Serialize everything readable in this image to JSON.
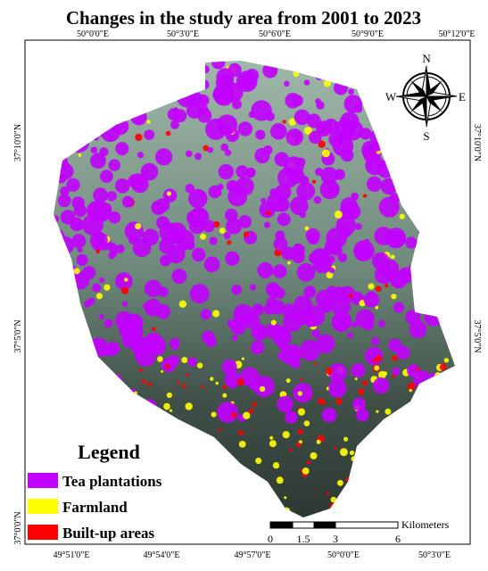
{
  "title": "Changes in the study area from 2001 to 2023",
  "grid_labels": {
    "top": [
      "50°0'0\"E",
      "50°3'0\"E",
      "50°6'0\"E",
      "50°9'0\"E",
      "50°12'0\"E"
    ],
    "bottom": [
      "49°51'0\"E",
      "49°54'0\"E",
      "49°57'0\"E",
      "50°0'0\"E",
      "50°3'0\"E"
    ],
    "left": [
      "37°10'0\"N",
      "37°5'0\"N",
      "37°0'0\"N"
    ],
    "right": [
      "37°10'0\"N",
      "37°5'0\"N"
    ]
  },
  "compass": {
    "north": "N",
    "south": "S",
    "east": "E",
    "west": "W"
  },
  "legend": {
    "title": "Legend",
    "items": [
      {
        "label": "Tea plantations",
        "color": "#c200ff"
      },
      {
        "label": "Farmland",
        "color": "#ffff00"
      },
      {
        "label": "Built-up areas",
        "color": "#ff0000"
      }
    ]
  },
  "scale_bar": {
    "unit": "Kilometers",
    "labels": [
      "0",
      "1.5",
      "3",
      "6"
    ]
  }
}
